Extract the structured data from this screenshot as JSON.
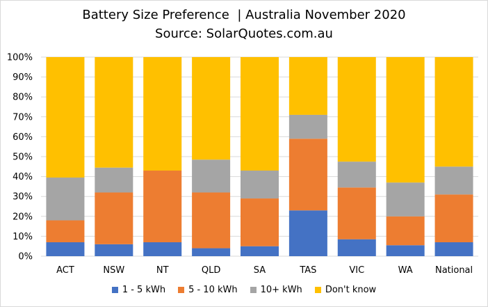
{
  "chart_data": {
    "type": "bar",
    "stacked": true,
    "title": "Battery Size Preference  | Australia November 2020",
    "subtitle": "Source: SolarQuotes.com.au",
    "xlabel": "",
    "ylabel": "",
    "ylim": [
      0,
      100
    ],
    "yticks": [
      "0%",
      "10%",
      "20%",
      "30%",
      "40%",
      "50%",
      "60%",
      "70%",
      "80%",
      "90%",
      "100%"
    ],
    "grid": true,
    "legend_position": "bottom",
    "categories": [
      "ACT",
      "NSW",
      "NT",
      "QLD",
      "SA",
      "TAS",
      "VIC",
      "WA",
      "National"
    ],
    "series": [
      {
        "name": "1 - 5 kWh",
        "color": "#4472C4",
        "values": [
          7,
          6,
          7,
          4,
          5,
          23,
          8.5,
          5.5,
          7
        ]
      },
      {
        "name": "5 - 10 kWh",
        "color": "#ED7D31",
        "values": [
          11,
          26,
          36,
          28,
          24,
          36,
          26,
          14.5,
          24
        ]
      },
      {
        "name": "10+ kWh",
        "color": "#A5A5A5",
        "values": [
          21.5,
          12.5,
          0,
          16.5,
          14,
          12,
          13,
          17,
          14
        ]
      },
      {
        "name": "Don't know",
        "color": "#FFC000",
        "values": [
          60.5,
          55.5,
          57,
          51.5,
          57,
          29,
          52.5,
          63,
          55
        ]
      }
    ]
  }
}
